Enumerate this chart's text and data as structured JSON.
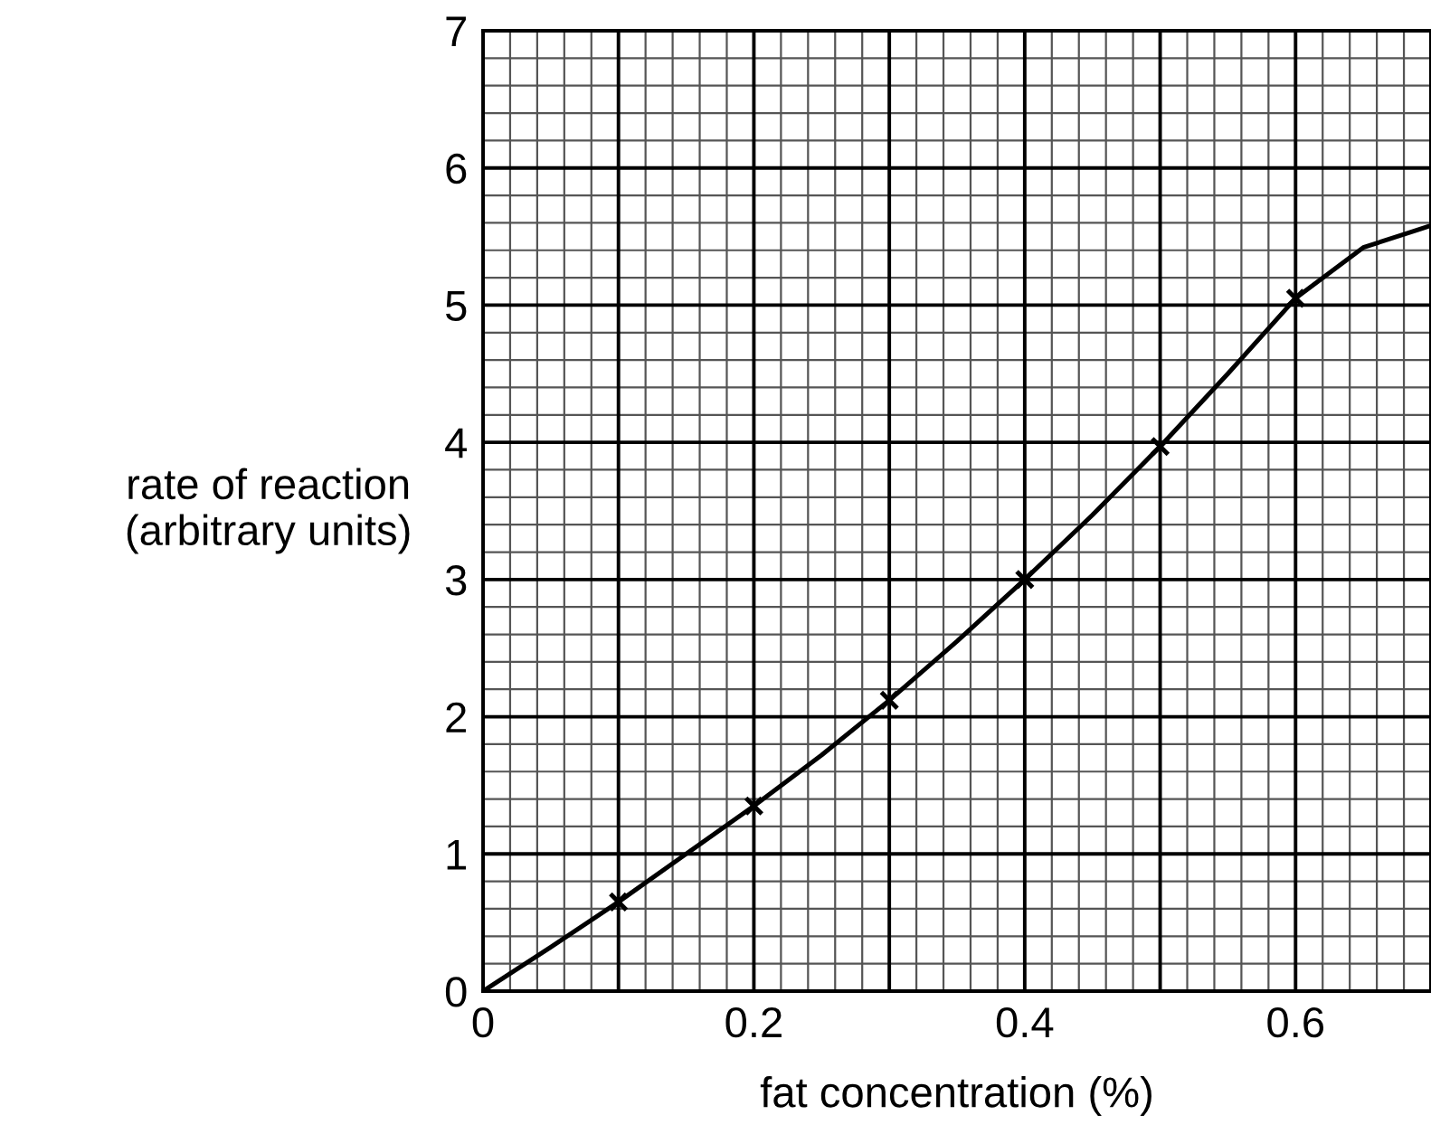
{
  "chart_data": {
    "type": "line",
    "xlabel": "fat concentration (%)",
    "ylabel": "rate of reaction\n(arbitrary units)",
    "series": [
      {
        "color": "#000000",
        "marker": "none",
        "x": [
          0,
          0.05,
          0.1,
          0.15,
          0.2,
          0.25,
          0.3,
          0.35,
          0.4,
          0.45,
          0.5,
          0.55,
          0.6,
          0.65,
          0.7
        ],
        "values": [
          0,
          0.32,
          0.65,
          1.0,
          1.35,
          1.72,
          2.12,
          2.55,
          3.0,
          3.47,
          3.97,
          4.5,
          5.05,
          5.42,
          5.58
        ]
      },
      {
        "type": "scatter",
        "color": "#000000",
        "marker": "cross",
        "x": [
          0.1,
          0.2,
          0.3,
          0.4,
          0.5,
          0.6
        ],
        "values": [
          0.65,
          1.35,
          2.12,
          3.0,
          3.97,
          5.05
        ]
      }
    ],
    "xlim": [
      0,
      0.7
    ],
    "ylim": [
      0,
      7
    ],
    "xticks": [
      0,
      0.2,
      0.4,
      0.6
    ],
    "yticks": [
      0,
      1,
      2,
      3,
      4,
      5,
      6,
      7
    ],
    "grid": true
  }
}
